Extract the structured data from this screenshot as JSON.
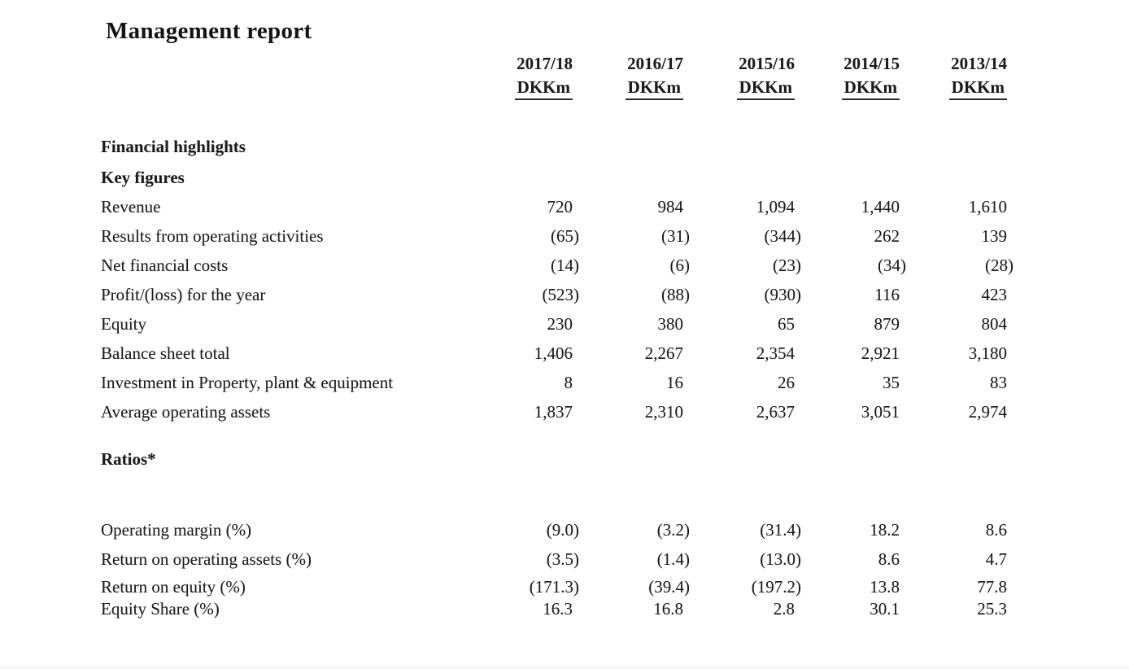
{
  "page": {
    "title": "Management report"
  },
  "table": {
    "columns": [
      {
        "year": "2017/18",
        "unit": "DKKm"
      },
      {
        "year": "2016/17",
        "unit": "DKKm"
      },
      {
        "year": "2015/16",
        "unit": "DKKm"
      },
      {
        "year": "2014/15",
        "unit": "DKKm"
      },
      {
        "year": "2013/14",
        "unit": "DKKm"
      }
    ],
    "sections": {
      "financial_highlights": "Financial highlights",
      "key_figures": "Key figures",
      "ratios": "Ratios*"
    },
    "key_figures_rows": [
      {
        "label": "Revenue",
        "values": [
          "720",
          "984",
          "1,094",
          "1,440",
          "1,610"
        ]
      },
      {
        "label": "Results from operating activities",
        "values": [
          "(65)",
          "(31)",
          "(344)",
          "262",
          "139"
        ]
      },
      {
        "label": "Net financial costs",
        "values": [
          "(14)",
          "(6)",
          "(23)",
          "(34)",
          "(28)"
        ]
      },
      {
        "label": "Profit/(loss) for the year",
        "values": [
          "(523)",
          "(88)",
          "(930)",
          "116",
          "423"
        ]
      },
      {
        "label": "Equity",
        "values": [
          "230",
          "380",
          "65",
          "879",
          "804"
        ]
      },
      {
        "label": "Balance sheet total",
        "values": [
          "1,406",
          "2,267",
          "2,354",
          "2,921",
          "3,180"
        ]
      },
      {
        "label": "Investment in Property, plant & equipment",
        "values": [
          "8",
          "16",
          "26",
          "35",
          "83"
        ]
      },
      {
        "label": "Average operating assets",
        "values": [
          "1,837",
          "2,310",
          "2,637",
          "3,051",
          "2,974"
        ]
      }
    ],
    "ratios_rows": [
      {
        "label": "Operating margin (%)",
        "values": [
          "(9.0)",
          "(3.2)",
          "(31.4)",
          "18.2",
          "8.6"
        ]
      },
      {
        "label": "Return on operating assets (%)",
        "values": [
          "(3.5)",
          "(1.4)",
          "(13.0)",
          "8.6",
          "4.7"
        ]
      },
      {
        "label": "Return on equity (%)",
        "values": [
          "(171.3)",
          "(39.4)",
          "(197.2)",
          "13.8",
          "77.8"
        ]
      },
      {
        "label": "Equity Share (%)",
        "values": [
          "16.3",
          "16.8",
          "2.8",
          "30.1",
          "25.3"
        ]
      }
    ]
  }
}
